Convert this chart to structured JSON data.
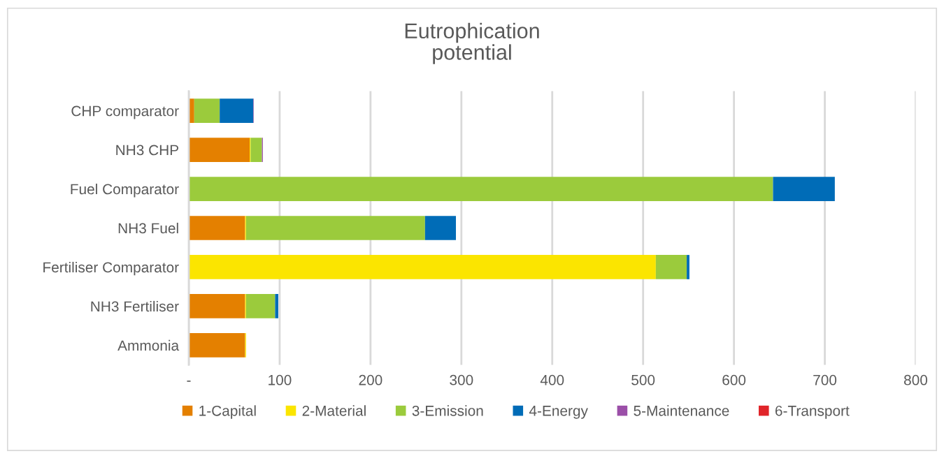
{
  "chart_data": {
    "type": "bar",
    "orientation": "horizontal",
    "stacked": true,
    "title": "Eutrophication\npotential",
    "categories": [
      "CHP comparator",
      "NH3 CHP",
      "Fuel Comparator",
      "NH3 Fuel",
      "Fertiliser Comparator",
      "NH3 Fertiliser",
      "Ammonia"
    ],
    "series": [
      {
        "name": "1-Capital",
        "color": "#e48000",
        "values": [
          6,
          67,
          0,
          62,
          0,
          62,
          62
        ]
      },
      {
        "name": "2-Material",
        "color": "#fbe500",
        "values": [
          0,
          1,
          0,
          1,
          514,
          1,
          1
        ]
      },
      {
        "name": "3-Emission",
        "color": "#9bcb3c",
        "values": [
          28,
          12.5,
          643,
          197,
          34,
          32,
          0
        ]
      },
      {
        "name": "4-Energy",
        "color": "#006cb7",
        "values": [
          37,
          0,
          68,
          34,
          3,
          3.5,
          0
        ]
      },
      {
        "name": "5-Maintenance",
        "color": "#9b4fa8",
        "values": [
          0.5,
          1,
          0,
          0,
          0,
          0,
          0
        ]
      },
      {
        "name": "6-Transport",
        "color": "#e0252a",
        "values": [
          0,
          0,
          0,
          0,
          0,
          0,
          0
        ]
      }
    ],
    "xlim": [
      0,
      800
    ],
    "xticks": [
      {
        "value": 0,
        "label": "-"
      },
      100,
      200,
      300,
      400,
      500,
      600,
      700,
      800
    ],
    "grid": "x",
    "legend": "bottom"
  }
}
